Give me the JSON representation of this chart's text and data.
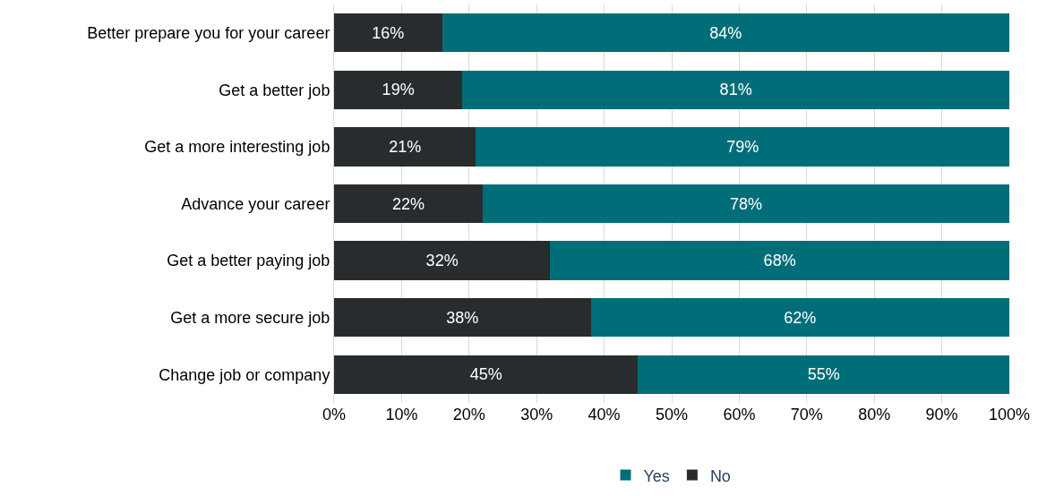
{
  "chart_data": {
    "type": "bar",
    "orientation": "horizontal",
    "stacked": true,
    "categories": [
      "Better prepare you for your career",
      "Get a better job",
      "Get a more interesting job",
      "Advance your career",
      "Get a better paying job",
      "Get a more secure job",
      "Change job or company"
    ],
    "series": [
      {
        "name": "No",
        "color": "#282c2e",
        "values": [
          16,
          19,
          21,
          22,
          32,
          38,
          45
        ],
        "value_labels": [
          "16%",
          "19%",
          "21%",
          "22%",
          "32%",
          "38%",
          "45%"
        ]
      },
      {
        "name": "Yes",
        "color": "#006e78",
        "values": [
          84,
          81,
          79,
          78,
          68,
          62,
          55
        ],
        "value_labels": [
          "84%",
          "81%",
          "79%",
          "78%",
          "68%",
          "62%",
          "55%"
        ]
      }
    ],
    "xlim": [
      0,
      100
    ],
    "xticks": [
      {
        "value": 0,
        "label": "0%"
      },
      {
        "value": 10,
        "label": "10%"
      },
      {
        "value": 20,
        "label": "20%"
      },
      {
        "value": 30,
        "label": "30%"
      },
      {
        "value": 40,
        "label": "40%"
      },
      {
        "value": 50,
        "label": "50%"
      },
      {
        "value": 60,
        "label": "60%"
      },
      {
        "value": 70,
        "label": "70%"
      },
      {
        "value": 80,
        "label": "80%"
      },
      {
        "value": 90,
        "label": "90%"
      },
      {
        "value": 100,
        "label": "100%"
      }
    ],
    "grid": "x",
    "legend": "bottom"
  }
}
